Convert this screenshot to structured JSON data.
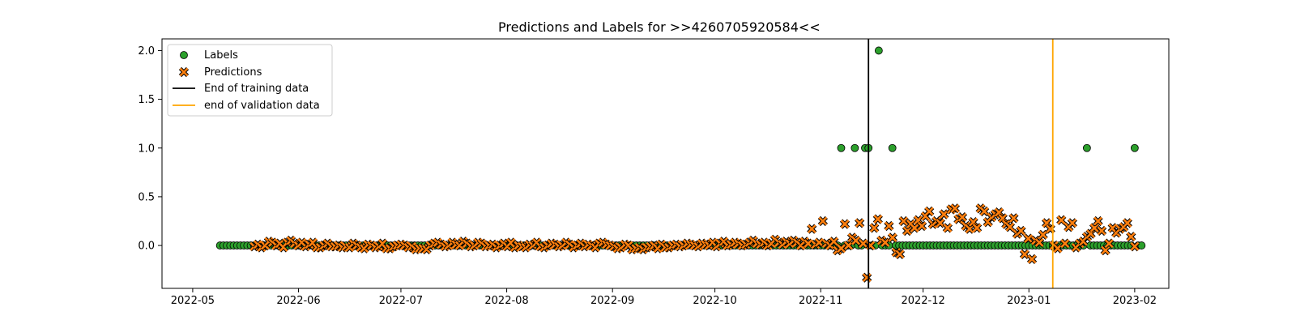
{
  "chart_data": {
    "type": "scatter",
    "title": "Predictions and Labels for >>4260705920584<<",
    "xlabel": "",
    "ylabel": "",
    "x_range": [
      "2022-04-22",
      "2023-02-11"
    ],
    "ylim": [
      -0.44,
      2.12
    ],
    "x_ticks": [
      {
        "date": "2022-05-01",
        "label": "2022-05"
      },
      {
        "date": "2022-06-01",
        "label": "2022-06"
      },
      {
        "date": "2022-07-01",
        "label": "2022-07"
      },
      {
        "date": "2022-08-01",
        "label": "2022-08"
      },
      {
        "date": "2022-09-01",
        "label": "2022-09"
      },
      {
        "date": "2022-10-01",
        "label": "2022-10"
      },
      {
        "date": "2022-11-01",
        "label": "2022-11"
      },
      {
        "date": "2022-12-01",
        "label": "2022-12"
      },
      {
        "date": "2023-01-01",
        "label": "2023-01"
      },
      {
        "date": "2023-02-01",
        "label": "2023-02"
      }
    ],
    "y_ticks": [
      {
        "value": 0.0,
        "label": "0.0"
      },
      {
        "value": 0.5,
        "label": "0.5"
      },
      {
        "value": 1.0,
        "label": "1.0"
      },
      {
        "value": 1.5,
        "label": "1.5"
      },
      {
        "value": 2.0,
        "label": "2.0"
      }
    ],
    "grid": false,
    "legend": {
      "position": "top-left",
      "entries": [
        {
          "label": "Labels",
          "kind": "circle",
          "color": "#2ca02c"
        },
        {
          "label": "Predictions",
          "kind": "cross",
          "color": "#ff7f0e"
        },
        {
          "label": "End of training data",
          "kind": "line",
          "color": "#000000"
        },
        {
          "label": "end of validation data",
          "kind": "line",
          "color": "#ffa500"
        }
      ]
    },
    "vlines": [
      {
        "name": "End of training data",
        "date": "2022-11-15",
        "color": "#000000"
      },
      {
        "name": "end of validation data",
        "date": "2023-01-08",
        "color": "#ffa500"
      }
    ],
    "labels_series": {
      "name": "Labels",
      "color": "#2ca02c",
      "start_date": "2022-05-09",
      "end_date": "2023-02-03",
      "default_value": 0,
      "nonzero": [
        {
          "date": "2022-11-07",
          "value": 1
        },
        {
          "date": "2022-11-11",
          "value": 1
        },
        {
          "date": "2022-11-14",
          "value": 1
        },
        {
          "date": "2022-11-15",
          "value": 1
        },
        {
          "date": "2022-11-18",
          "value": 2
        },
        {
          "date": "2022-11-22",
          "value": 1
        },
        {
          "date": "2023-01-18",
          "value": 1
        },
        {
          "date": "2023-02-01",
          "value": 1
        }
      ]
    },
    "predictions_series": {
      "name": "Predictions",
      "color": "#ff7f0e",
      "start_date": "2022-05-19",
      "end_date": "2023-02-01",
      "values": [
        -0.01,
        0.01,
        -0.02,
        0.0,
        0.04,
        0.03,
        0.0,
        0.02,
        -0.02,
        0.03,
        0.05,
        0.02,
        0.0,
        0.03,
        -0.01,
        0.01,
        0.03,
        -0.02,
        -0.02,
        0.0,
        0.02,
        -0.01,
        -0.01,
        0.0,
        -0.02,
        -0.01,
        -0.02,
        0.02,
        0.0,
        -0.02,
        -0.03,
        0.01,
        0.0,
        -0.02,
        -0.01,
        0.02,
        -0.03,
        -0.03,
        -0.01,
        0.0,
        0.01,
        0.0,
        -0.02,
        -0.01,
        -0.04,
        -0.03,
        -0.03,
        -0.04,
        0.0,
        0.02,
        0.03,
        0.01,
        -0.01,
        0.0,
        0.03,
        0.01,
        0.0,
        0.04,
        0.02,
        -0.01,
        0.0,
        0.03,
        0.02,
        -0.01,
        0.0,
        0.01,
        -0.02,
        0.0,
        0.02,
        -0.01,
        0.03,
        -0.02,
        0.0,
        -0.01,
        -0.02,
        0.01,
        0.0,
        0.03,
        -0.01,
        -0.02,
        0.0,
        0.02,
        0.01,
        -0.01,
        0.0,
        0.03,
        0.01,
        -0.02,
        0.0,
        0.02,
        -0.01,
        0.01,
        0.0,
        -0.02,
        0.02,
        0.03,
        0.01,
        0.0,
        -0.01,
        -0.03,
        -0.02,
        0.01,
        0.0,
        -0.04,
        -0.03,
        -0.02,
        -0.04,
        -0.02,
        -0.01,
        0.0,
        -0.03,
        0.01,
        -0.02,
        -0.02,
        0.0,
        0.01,
        -0.01,
        0.0,
        0.02,
        0.01,
        0.0,
        -0.01,
        0.02,
        0.01,
        0.0,
        0.03,
        -0.01,
        0.02,
        0.04,
        0.0,
        0.01,
        0.03,
        0.02,
        0.0,
        0.01,
        0.03,
        0.05,
        0.02,
        0.01,
        0.03,
        0.0,
        0.02,
        0.06,
        0.03,
        0.01,
        0.04,
        0.02,
        0.05,
        0.03,
        0.0,
        0.04,
        0.02,
        0.17,
        0.01,
        0.03,
        0.25,
        0.02,
        0.0,
        0.04,
        -0.05,
        -0.03,
        0.22,
        0.0,
        0.08,
        0.05,
        0.23,
        0.02,
        -0.33,
        0.0,
        0.18,
        0.27,
        0.05,
        0.03,
        0.2,
        0.08,
        -0.07,
        -0.09,
        0.25,
        0.15,
        0.22,
        0.18,
        0.26,
        0.2,
        0.3,
        0.35,
        0.22,
        0.25,
        0.23,
        0.32,
        0.18,
        0.37,
        0.38,
        0.27,
        0.29,
        0.2,
        0.17,
        0.24,
        0.18,
        0.38,
        0.35,
        0.24,
        0.29,
        0.32,
        0.34,
        0.28,
        0.22,
        0.19,
        0.28,
        0.12,
        0.15,
        -0.09,
        0.07,
        -0.14,
        0.05,
        0.03,
        0.11,
        0.23,
        0.17,
        0.0,
        -0.03,
        0.26,
        0.02,
        0.19,
        0.23,
        -0.02,
        0.02,
        0.04,
        0.09,
        0.12,
        0.18,
        0.25,
        0.15,
        -0.05,
        0.02,
        0.18,
        0.13,
        0.17,
        0.19,
        0.23,
        0.09,
        -0.01
      ]
    }
  }
}
